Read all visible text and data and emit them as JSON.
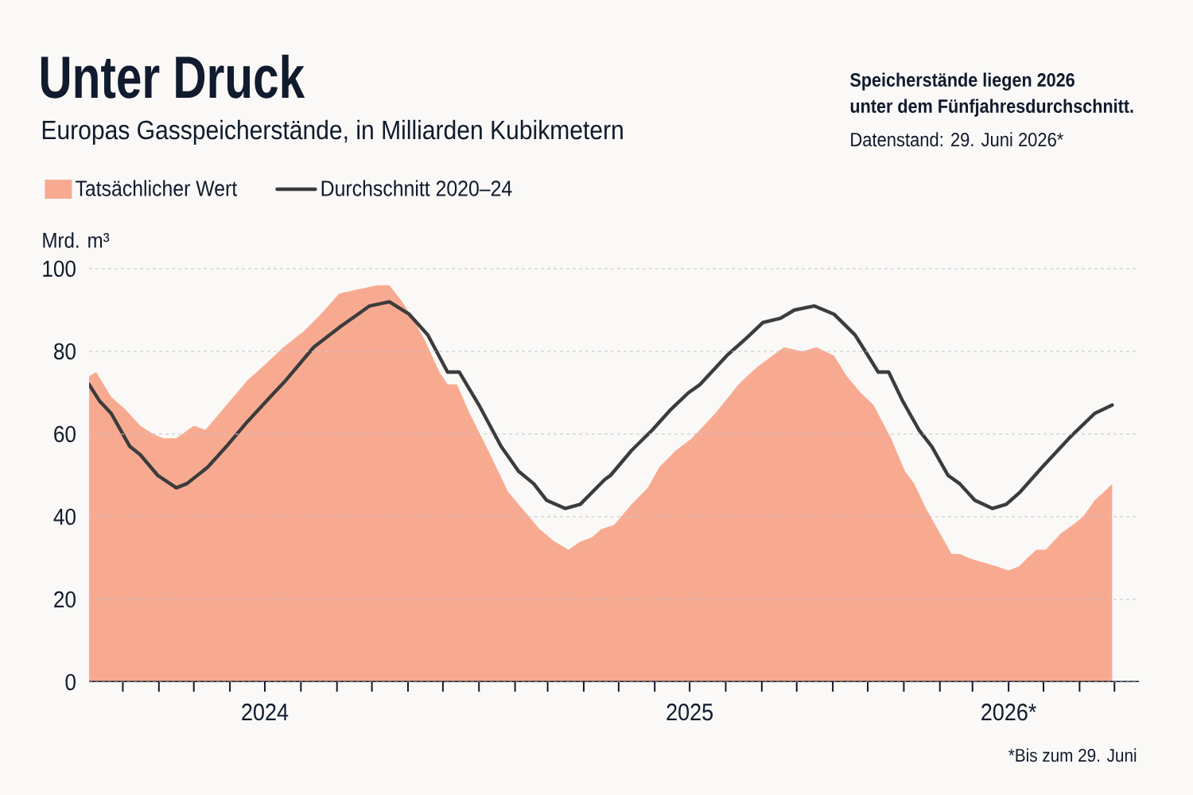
{
  "chart_data": {
    "type": "area",
    "title": "Unter Druck",
    "subtitle": "Europas Gasspeicherstände, in Milliarden Kubikmetern",
    "ylabel": "Mrd. m³",
    "xlim": [
      "2024-02-01",
      "2026-07-22"
    ],
    "xticks": [
      {
        "value": "2024-03-01",
        "label": null
      },
      {
        "value": "2024-04-01",
        "label": null
      },
      {
        "value": "2024-05-01",
        "label": null
      },
      {
        "value": "2024-06-01",
        "label": null
      },
      {
        "value": "2024-07-01",
        "label": "2024"
      },
      {
        "value": "2024-08-01",
        "label": null
      },
      {
        "value": "2024-09-01",
        "label": null
      },
      {
        "value": "2024-10-01",
        "label": null
      },
      {
        "value": "2024-11-01",
        "label": null
      },
      {
        "value": "2024-12-01",
        "label": null
      },
      {
        "value": "2025-01-01",
        "label": null
      },
      {
        "value": "2025-02-01",
        "label": null
      },
      {
        "value": "2025-03-01",
        "label": null
      },
      {
        "value": "2025-04-01",
        "label": null
      },
      {
        "value": "2025-05-01",
        "label": null
      },
      {
        "value": "2025-06-01",
        "label": null
      },
      {
        "value": "2025-07-01",
        "label": "2025"
      },
      {
        "value": "2025-08-01",
        "label": null
      },
      {
        "value": "2025-09-01",
        "label": null
      },
      {
        "value": "2025-10-01",
        "label": null
      },
      {
        "value": "2025-11-01",
        "label": null
      },
      {
        "value": "2025-12-01",
        "label": null
      },
      {
        "value": "2026-01-01",
        "label": null
      },
      {
        "value": "2026-02-01",
        "label": null
      },
      {
        "value": "2026-03-01",
        "label": null
      },
      {
        "value": "2026-04-01",
        "label": "2026*"
      },
      {
        "value": "2026-05-01",
        "label": null
      },
      {
        "value": "2026-06-01",
        "label": null
      },
      {
        "value": "2026-07-01",
        "label": null
      }
    ],
    "ylim": [
      0,
      100
    ],
    "yticks": [
      0,
      20,
      40,
      60,
      80,
      100
    ],
    "grid": "y",
    "legend": "top left",
    "series": [
      {
        "name": "Tatsächlicher Wert",
        "type": "area",
        "color": "#f8aa91",
        "x": [
          "2024-02-01",
          "2024-02-07",
          "2024-02-20",
          "2024-03-03",
          "2024-03-16",
          "2024-03-27",
          "2024-04-05",
          "2024-04-16",
          "2024-05-01",
          "2024-05-11",
          "2024-05-29",
          "2024-06-16",
          "2024-07-02",
          "2024-07-17",
          "2024-08-04",
          "2024-08-18",
          "2024-09-03",
          "2024-09-19",
          "2024-10-06",
          "2024-10-16",
          "2024-10-27",
          "2024-11-07",
          "2024-11-15",
          "2024-11-28",
          "2024-12-05",
          "2024-12-13",
          "2024-12-24",
          "2025-01-09",
          "2025-01-26",
          "2025-02-10",
          "2025-02-22",
          "2025-03-07",
          "2025-03-19",
          "2025-03-29",
          "2025-04-08",
          "2025-04-16",
          "2025-04-27",
          "2025-05-12",
          "2025-05-26",
          "2025-06-05",
          "2025-06-19",
          "2025-07-03",
          "2025-07-23",
          "2025-08-12",
          "2025-08-27",
          "2025-09-20",
          "2025-10-06",
          "2025-10-18",
          "2025-11-02",
          "2025-11-13",
          "2025-11-25",
          "2025-12-06",
          "2025-12-21",
          "2026-01-02",
          "2026-01-10",
          "2026-01-20",
          "2026-02-11",
          "2026-02-18",
          "2026-02-26",
          "2026-03-10",
          "2026-03-22",
          "2026-04-01",
          "2026-04-10",
          "2026-04-17",
          "2026-04-25",
          "2026-05-03",
          "2026-05-16",
          "2026-05-26",
          "2026-06-04",
          "2026-06-14",
          "2026-06-22",
          "2026-06-29"
        ],
        "values": [
          74,
          75,
          69,
          66,
          62,
          60,
          59,
          59,
          62,
          61,
          67,
          73,
          77,
          81,
          85,
          89,
          94,
          95,
          96,
          96,
          92,
          87,
          83,
          75,
          72,
          72,
          65,
          56,
          46,
          41,
          37,
          34,
          32,
          34,
          35,
          37,
          38,
          43,
          47,
          52,
          56,
          59,
          65,
          72,
          76,
          81,
          80,
          81,
          79,
          74,
          70,
          67,
          59,
          51,
          48,
          42,
          31,
          31,
          30,
          29,
          28,
          27,
          28,
          30,
          32,
          32,
          36,
          38,
          40,
          44,
          46,
          48
        ]
      },
      {
        "name": "Durchschnitt 2020–24",
        "type": "line",
        "color": "#3c3c3c",
        "x": [
          "2024-02-01",
          "2024-02-10",
          "2024-02-20",
          "2024-03-07",
          "2024-03-16",
          "2024-03-31",
          "2024-04-16",
          "2024-04-25",
          "2024-05-13",
          "2024-05-29",
          "2024-06-16",
          "2024-07-09",
          "2024-07-19",
          "2024-08-12",
          "2024-09-04",
          "2024-09-19",
          "2024-09-29",
          "2024-10-16",
          "2024-11-02",
          "2024-11-18",
          "2024-12-05",
          "2024-12-15",
          "2025-01-01",
          "2025-01-20",
          "2025-02-04",
          "2025-02-17",
          "2025-02-28",
          "2025-03-16",
          "2025-03-29",
          "2025-04-19",
          "2025-04-24",
          "2025-05-12",
          "2025-05-30",
          "2025-06-15",
          "2025-06-30",
          "2025-07-10",
          "2025-08-02",
          "2025-08-18",
          "2025-09-02",
          "2025-09-17",
          "2025-09-29",
          "2025-10-16",
          "2025-11-02",
          "2025-11-20",
          "2025-11-29",
          "2025-12-10",
          "2025-12-19",
          "2025-12-31",
          "2026-01-14",
          "2026-01-25",
          "2026-02-08",
          "2026-02-18",
          "2026-03-03",
          "2026-03-18",
          "2026-03-30",
          "2026-04-11",
          "2026-04-30",
          "2026-05-23",
          "2026-06-14",
          "2026-06-29"
        ],
        "values": [
          72,
          68,
          65,
          57,
          55,
          50,
          47,
          48,
          52,
          57,
          63,
          70,
          73,
          81,
          86,
          89,
          91,
          92,
          89,
          84,
          75,
          75,
          67,
          57,
          51,
          48,
          44,
          42,
          43,
          49,
          50,
          56,
          61,
          66,
          70,
          72,
          79,
          83,
          87,
          88,
          90,
          91,
          89,
          84,
          80,
          75,
          75,
          68,
          61,
          57,
          50,
          48,
          44,
          42,
          43,
          46,
          52,
          59,
          65,
          67
        ]
      }
    ],
    "annotations": [
      "Speicherstände liegen 2026 unter dem Fünfjahresdurchschnitt.",
      "Datenstand: 29. Juni 2026*",
      "*Bis zum 29. Juni"
    ]
  }
}
